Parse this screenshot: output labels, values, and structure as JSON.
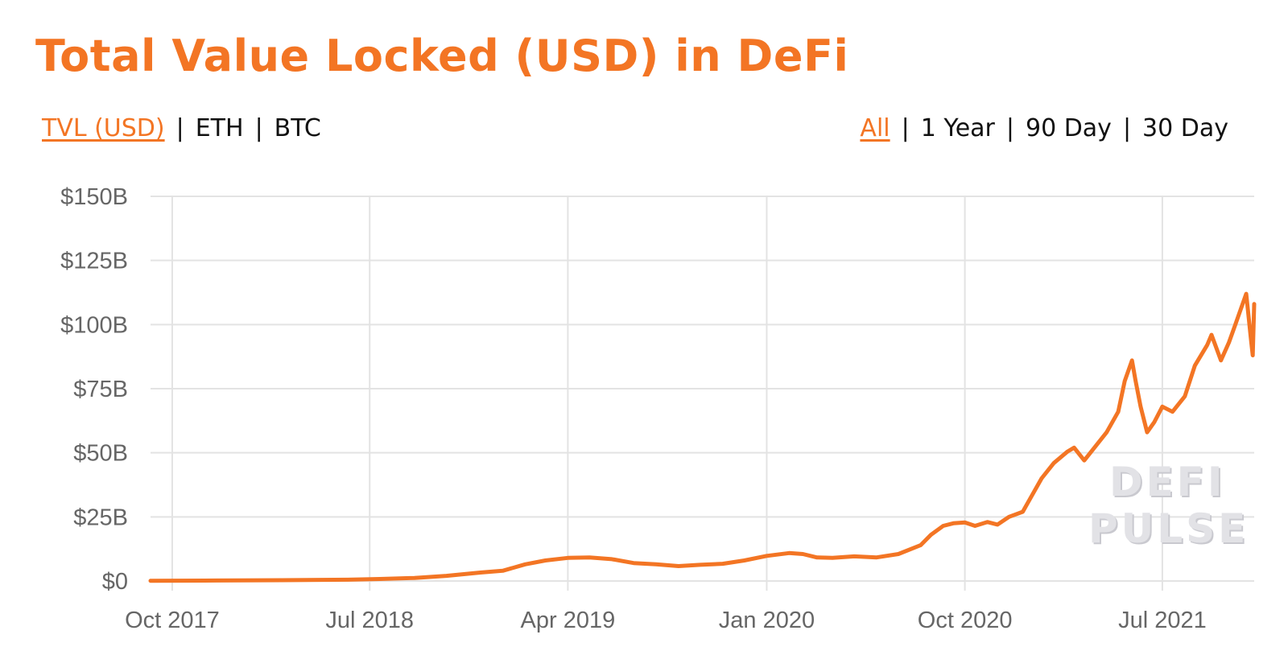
{
  "title": "Total Value Locked (USD) in DeFi",
  "denomination": {
    "options": [
      "TVL (USD)",
      "ETH",
      "BTC"
    ],
    "selected": "TVL (USD)"
  },
  "range": {
    "options": [
      "All",
      "1 Year",
      "90 Day",
      "30 Day"
    ],
    "selected": "All"
  },
  "watermark": {
    "line1": "DEFI",
    "line2": "PULSE"
  },
  "colors": {
    "accent": "#f37524",
    "grid": "#e3e3e3",
    "axis_text": "#666666"
  },
  "chart_data": {
    "type": "line",
    "title": "Total Value Locked (USD) in DeFi",
    "xlabel": "",
    "ylabel": "",
    "grid": true,
    "x_ticks": [
      "Oct 2017",
      "Jul 2018",
      "Apr 2019",
      "Jan 2020",
      "Oct 2020",
      "Jul 2021"
    ],
    "y_ticks": [
      "$0",
      "$25B",
      "$50B",
      "$75B",
      "$100B",
      "$125B",
      "$150B"
    ],
    "ylim": [
      0,
      150
    ],
    "xlim": [
      "2017-09-01",
      "2021-11-05"
    ],
    "units": "USD billions",
    "series": [
      {
        "color": "#f37524",
        "x": [
          "2017-09-01",
          "2017-12-01",
          "2018-03-01",
          "2018-06-01",
          "2018-07-15",
          "2018-09-01",
          "2018-10-15",
          "2018-12-01",
          "2019-01-01",
          "2019-02-01",
          "2019-03-01",
          "2019-04-01",
          "2019-05-01",
          "2019-06-01",
          "2019-07-01",
          "2019-08-01",
          "2019-09-01",
          "2019-10-01",
          "2019-11-01",
          "2019-12-01",
          "2020-01-01",
          "2020-02-01",
          "2020-02-20",
          "2020-03-10",
          "2020-04-01",
          "2020-05-01",
          "2020-06-01",
          "2020-07-01",
          "2020-08-01",
          "2020-08-15",
          "2020-09-01",
          "2020-09-15",
          "2020-10-01",
          "2020-10-15",
          "2020-11-01",
          "2020-11-15",
          "2020-12-01",
          "2020-12-20",
          "2021-01-01",
          "2021-01-15",
          "2021-02-01",
          "2021-02-20",
          "2021-03-01",
          "2021-03-15",
          "2021-04-01",
          "2021-04-15",
          "2021-05-01",
          "2021-05-10",
          "2021-05-20",
          "2021-05-25",
          "2021-06-01",
          "2021-06-10",
          "2021-06-20",
          "2021-07-01",
          "2021-07-15",
          "2021-08-01",
          "2021-08-15",
          "2021-09-01",
          "2021-09-07",
          "2021-09-20",
          "2021-10-01",
          "2021-10-10",
          "2021-10-20",
          "2021-10-25",
          "2021-11-01",
          "2021-11-03",
          "2021-11-05"
        ],
        "values": [
          0.1,
          0.2,
          0.3,
          0.5,
          0.8,
          1.2,
          2.0,
          3.3,
          4.0,
          6.5,
          8.0,
          9.0,
          9.2,
          8.5,
          7.0,
          6.5,
          5.8,
          6.3,
          6.7,
          8.0,
          9.8,
          10.9,
          10.5,
          9.2,
          9.0,
          9.6,
          9.2,
          10.5,
          14.0,
          18.0,
          21.5,
          22.5,
          22.8,
          21.5,
          23.0,
          22.0,
          25.0,
          27.0,
          33.0,
          40.0,
          46.0,
          50.5,
          52.0,
          47.0,
          53.0,
          58.0,
          66.0,
          78.0,
          86.0,
          78.0,
          68.0,
          58.0,
          62.0,
          68.0,
          66.0,
          72.0,
          84.0,
          92.0,
          96.0,
          86.0,
          93.0,
          100.0,
          108.0,
          112.0,
          93.0,
          88.0,
          108.0
        ]
      }
    ]
  }
}
